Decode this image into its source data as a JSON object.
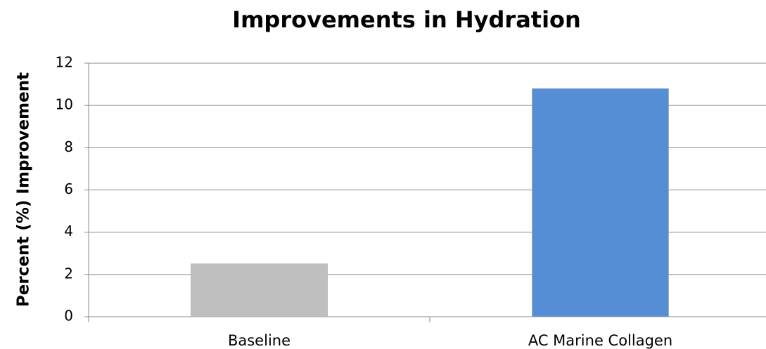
{
  "chart_data": {
    "type": "bar",
    "title": "Improvements in Hydration",
    "y_label": "Percent (%) Improvement",
    "categories": [
      "Baseline",
      "AC Marine Collagen"
    ],
    "values": [
      2.5,
      10.8
    ],
    "colors": [
      "#bfbfbf",
      "#558ed5"
    ],
    "ylim": [
      0,
      12
    ],
    "yticks": [
      0,
      2,
      4,
      6,
      8,
      10,
      12
    ],
    "grid": true
  }
}
